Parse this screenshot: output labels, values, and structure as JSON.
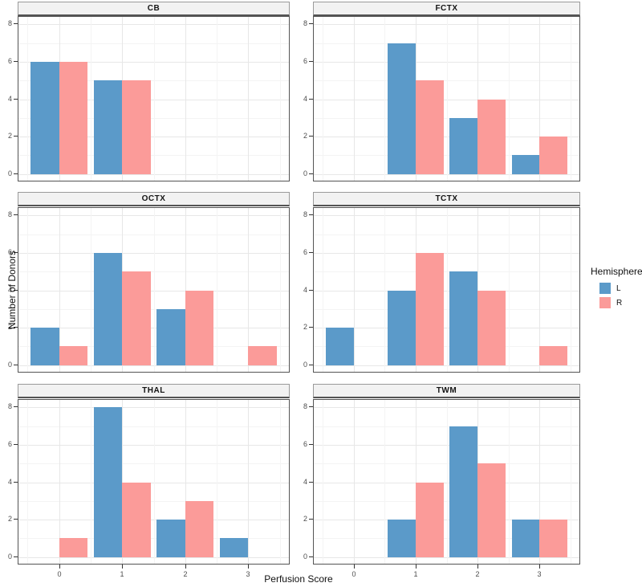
{
  "chart_data": {
    "type": "bar",
    "layout": "facet-grid-2col-3row-dodged-bars",
    "xlabel": "Perfusion Score",
    "ylabel": "Number of Donors",
    "x": [
      0,
      1,
      2,
      3
    ],
    "yticks": [
      0,
      2,
      4,
      6,
      8
    ],
    "ylim": [
      0,
      8
    ],
    "grid": "on",
    "series_names": [
      "L",
      "R"
    ],
    "series_colors": {
      "L": "#5b9ac9",
      "R": "#fb9b99"
    },
    "legend": {
      "title": "Hemisphere",
      "position": "right",
      "entries": [
        {
          "label": "L",
          "color": "#5b9ac9"
        },
        {
          "label": "R",
          "color": "#fb9b99"
        }
      ]
    },
    "facets": [
      {
        "title": "CB",
        "values": {
          "L": [
            6,
            5,
            null,
            null
          ],
          "R": [
            6,
            5,
            null,
            null
          ]
        }
      },
      {
        "title": "FCTX",
        "values": {
          "L": [
            null,
            7,
            3,
            1
          ],
          "R": [
            null,
            5,
            4,
            2
          ]
        }
      },
      {
        "title": "OCTX",
        "values": {
          "L": [
            2,
            6,
            3,
            null
          ],
          "R": [
            1,
            5,
            4,
            1
          ]
        }
      },
      {
        "title": "TCTX",
        "values": {
          "L": [
            2,
            4,
            5,
            null
          ],
          "R": [
            null,
            6,
            4,
            1
          ]
        }
      },
      {
        "title": "THAL",
        "values": {
          "L": [
            null,
            8,
            2,
            1
          ],
          "R": [
            1,
            4,
            3,
            null
          ]
        }
      },
      {
        "title": "TWM",
        "values": {
          "L": [
            null,
            2,
            7,
            2
          ],
          "R": [
            null,
            4,
            5,
            2
          ]
        }
      }
    ]
  }
}
